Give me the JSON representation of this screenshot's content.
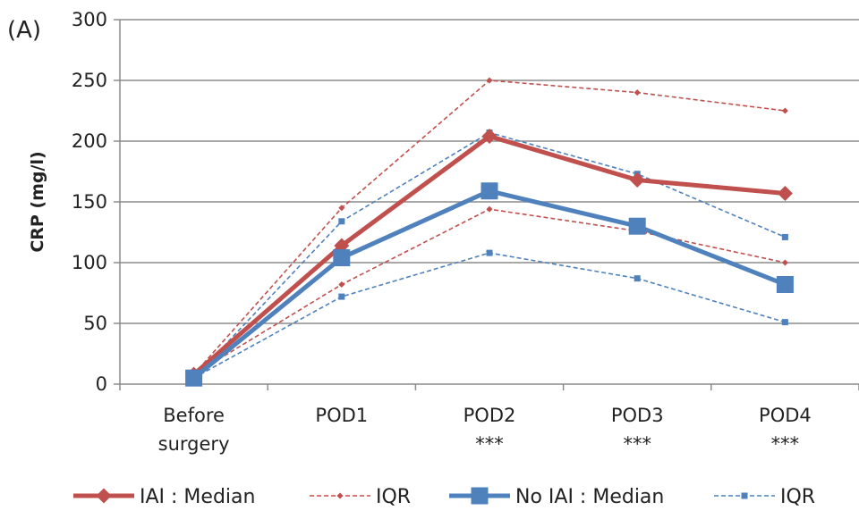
{
  "panel_label": "(A)",
  "chart_data": {
    "type": "line",
    "ylabel": "CRP (mg/l)",
    "xlabel": "",
    "ylim": [
      0,
      300
    ],
    "yticks": [
      0,
      50,
      100,
      150,
      200,
      250,
      300
    ],
    "grid": "horizontal",
    "legend_position": "bottom",
    "categories": [
      {
        "lines": [
          "Before",
          "surgery"
        ]
      },
      {
        "lines": [
          "POD1"
        ]
      },
      {
        "lines": [
          "POD2",
          "***"
        ]
      },
      {
        "lines": [
          "POD3",
          "***"
        ]
      },
      {
        "lines": [
          "POD4",
          "***"
        ]
      }
    ],
    "series": [
      {
        "name": "IAI : Median",
        "values": [
          8,
          114,
          204,
          168,
          157
        ],
        "color": "#c0504d",
        "style": "solid",
        "marker": "diamond",
        "width": "thick"
      },
      {
        "name": "IQR",
        "values": [
          8,
          145,
          250,
          240,
          225
        ],
        "color": "#c0504d",
        "style": "dashed",
        "marker": "diamond",
        "width": "thin",
        "group": "IAI upper"
      },
      {
        "name": "IQR",
        "values": [
          8,
          82,
          144,
          126,
          100
        ],
        "color": "#c0504d",
        "style": "dashed",
        "marker": "diamond",
        "width": "thin",
        "group": "IAI lower",
        "legend": false
      },
      {
        "name": "No IAI : Median",
        "values": [
          5,
          104,
          159,
          130,
          82
        ],
        "color": "#4f81bd",
        "style": "solid",
        "marker": "square",
        "width": "thick"
      },
      {
        "name": "IQR",
        "values": [
          5,
          134,
          207,
          173,
          121
        ],
        "color": "#4f81bd",
        "style": "dashed",
        "marker": "square",
        "width": "thin",
        "group": "No IAI upper"
      },
      {
        "name": "IQR",
        "values": [
          5,
          72,
          108,
          87,
          51
        ],
        "color": "#4f81bd",
        "style": "dashed",
        "marker": "square",
        "width": "thin",
        "group": "No IAI lower",
        "legend": false
      }
    ]
  }
}
